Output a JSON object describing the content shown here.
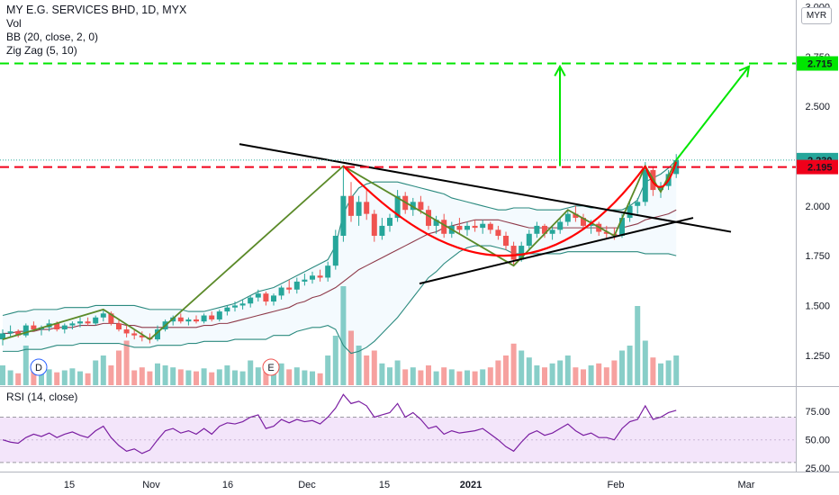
{
  "legend": {
    "title": "MY E.G. SERVICES BHD, 1D, MYX",
    "vol": "Vol",
    "bb": "BB (20, close, 2, 0)",
    "zigzag": "Zig Zag (5, 10)",
    "rsi": "RSI (14, close)"
  },
  "currency": "MYR",
  "colors": {
    "up": "#26a69a",
    "down": "#ef5350",
    "bb_upper": "#2b8a7f",
    "bb_basis": "#8e3a4a",
    "zigzag": "#5b8a29",
    "cup": "#ff0000",
    "target": "#00e600",
    "trend": "#000000",
    "rsi_line": "#7b1fa2",
    "rsi_bg": "#f3e5fa"
  },
  "chart_data": {
    "type": "candlestick",
    "price_axis": {
      "range": [
        1.1,
        3.02
      ],
      "ticks": [
        "3.000",
        "2.750",
        "2.500",
        "2.250",
        "2.000",
        "1.750",
        "1.500",
        "1.250"
      ]
    },
    "time_axis": {
      "ticks": [
        "15",
        "Nov",
        "16",
        "Dec",
        "15",
        "2021",
        "Feb",
        "Mar"
      ]
    },
    "price_labels": [
      {
        "text": "2.715",
        "value": 2.715,
        "color": "#00e600",
        "text_color": "#131722"
      },
      {
        "text": "2.230",
        "value": 2.23,
        "color": "#26a69a",
        "text_color": "#ffffff"
      },
      {
        "text": "2.195",
        "value": 2.195,
        "color": "#f0001a",
        "text_color": "#ffffff"
      }
    ],
    "hidden_tick": "2.750",
    "candles": [
      [
        1.33,
        1.38,
        1.3,
        1.36
      ],
      [
        1.36,
        1.4,
        1.34,
        1.37
      ],
      [
        1.37,
        1.38,
        1.34,
        1.35
      ],
      [
        1.35,
        1.41,
        1.34,
        1.4
      ],
      [
        1.4,
        1.42,
        1.37,
        1.38
      ],
      [
        1.38,
        1.4,
        1.35,
        1.39
      ],
      [
        1.39,
        1.43,
        1.37,
        1.41
      ],
      [
        1.41,
        1.42,
        1.37,
        1.38
      ],
      [
        1.38,
        1.41,
        1.36,
        1.4
      ],
      [
        1.4,
        1.42,
        1.38,
        1.41
      ],
      [
        1.41,
        1.44,
        1.39,
        1.42
      ],
      [
        1.42,
        1.44,
        1.4,
        1.41
      ],
      [
        1.41,
        1.45,
        1.4,
        1.44
      ],
      [
        1.44,
        1.48,
        1.42,
        1.46
      ],
      [
        1.46,
        1.47,
        1.4,
        1.41
      ],
      [
        1.41,
        1.43,
        1.37,
        1.38
      ],
      [
        1.38,
        1.4,
        1.34,
        1.36
      ],
      [
        1.36,
        1.38,
        1.33,
        1.35
      ],
      [
        1.35,
        1.37,
        1.32,
        1.34
      ],
      [
        1.34,
        1.36,
        1.31,
        1.33
      ],
      [
        1.33,
        1.4,
        1.32,
        1.38
      ],
      [
        1.38,
        1.43,
        1.37,
        1.42
      ],
      [
        1.42,
        1.45,
        1.4,
        1.44
      ],
      [
        1.44,
        1.46,
        1.41,
        1.42
      ],
      [
        1.42,
        1.44,
        1.4,
        1.43
      ],
      [
        1.43,
        1.45,
        1.41,
        1.42
      ],
      [
        1.42,
        1.46,
        1.41,
        1.45
      ],
      [
        1.45,
        1.47,
        1.42,
        1.43
      ],
      [
        1.43,
        1.48,
        1.42,
        1.47
      ],
      [
        1.47,
        1.5,
        1.45,
        1.49
      ],
      [
        1.49,
        1.52,
        1.47,
        1.5
      ],
      [
        1.5,
        1.53,
        1.48,
        1.51
      ],
      [
        1.51,
        1.55,
        1.49,
        1.54
      ],
      [
        1.54,
        1.58,
        1.52,
        1.56
      ],
      [
        1.56,
        1.57,
        1.5,
        1.52
      ],
      [
        1.52,
        1.56,
        1.5,
        1.55
      ],
      [
        1.55,
        1.6,
        1.53,
        1.59
      ],
      [
        1.59,
        1.63,
        1.56,
        1.58
      ],
      [
        1.58,
        1.64,
        1.56,
        1.62
      ],
      [
        1.62,
        1.66,
        1.6,
        1.63
      ],
      [
        1.63,
        1.67,
        1.61,
        1.65
      ],
      [
        1.65,
        1.68,
        1.62,
        1.64
      ],
      [
        1.64,
        1.72,
        1.62,
        1.7
      ],
      [
        1.7,
        1.88,
        1.68,
        1.85
      ],
      [
        1.85,
        2.2,
        1.82,
        2.05
      ],
      [
        2.05,
        2.12,
        1.92,
        1.95
      ],
      [
        1.95,
        2.05,
        1.9,
        2.02
      ],
      [
        2.02,
        2.08,
        1.93,
        1.96
      ],
      [
        1.96,
        1.98,
        1.82,
        1.85
      ],
      [
        1.85,
        1.94,
        1.83,
        1.9
      ],
      [
        1.9,
        1.96,
        1.87,
        1.94
      ],
      [
        1.94,
        2.08,
        1.92,
        2.05
      ],
      [
        2.05,
        2.07,
        1.96,
        1.98
      ],
      [
        1.98,
        2.04,
        1.95,
        2.02
      ],
      [
        2.02,
        2.05,
        1.96,
        1.98
      ],
      [
        1.98,
        2.0,
        1.88,
        1.9
      ],
      [
        1.9,
        1.95,
        1.86,
        1.93
      ],
      [
        1.93,
        1.96,
        1.84,
        1.86
      ],
      [
        1.86,
        1.92,
        1.84,
        1.9
      ],
      [
        1.9,
        1.94,
        1.86,
        1.88
      ],
      [
        1.88,
        1.92,
        1.85,
        1.9
      ],
      [
        1.9,
        1.93,
        1.87,
        1.89
      ],
      [
        1.89,
        1.93,
        1.86,
        1.91
      ],
      [
        1.91,
        1.92,
        1.86,
        1.88
      ],
      [
        1.88,
        1.9,
        1.83,
        1.85
      ],
      [
        1.85,
        1.87,
        1.78,
        1.8
      ],
      [
        1.8,
        1.82,
        1.7,
        1.73
      ],
      [
        1.73,
        1.82,
        1.72,
        1.8
      ],
      [
        1.8,
        1.88,
        1.78,
        1.86
      ],
      [
        1.86,
        1.92,
        1.84,
        1.9
      ],
      [
        1.9,
        1.91,
        1.84,
        1.86
      ],
      [
        1.86,
        1.9,
        1.83,
        1.88
      ],
      [
        1.88,
        1.94,
        1.86,
        1.92
      ],
      [
        1.92,
        1.98,
        1.9,
        1.96
      ],
      [
        1.96,
        2.0,
        1.92,
        1.94
      ],
      [
        1.94,
        1.96,
        1.88,
        1.9
      ],
      [
        1.9,
        1.93,
        1.86,
        1.91
      ],
      [
        1.91,
        1.92,
        1.85,
        1.87
      ],
      [
        1.87,
        1.9,
        1.84,
        1.86
      ],
      [
        1.86,
        1.89,
        1.83,
        1.85
      ],
      [
        1.85,
        1.96,
        1.84,
        1.94
      ],
      [
        1.94,
        2.02,
        1.92,
        2.0
      ],
      [
        2.0,
        2.04,
        1.96,
        2.02
      ],
      [
        2.02,
        2.22,
        2.0,
        2.18
      ],
      [
        2.18,
        2.2,
        2.05,
        2.08
      ],
      [
        2.08,
        2.12,
        2.04,
        2.1
      ],
      [
        2.1,
        2.18,
        2.08,
        2.16
      ],
      [
        2.16,
        2.26,
        2.14,
        2.23
      ]
    ],
    "volume": [
      0.2,
      0.15,
      0.12,
      0.4,
      0.18,
      0.14,
      0.16,
      0.13,
      0.15,
      0.17,
      0.14,
      0.12,
      0.25,
      0.3,
      0.2,
      0.35,
      0.45,
      0.15,
      0.18,
      0.14,
      0.22,
      0.2,
      0.18,
      0.16,
      0.15,
      0.14,
      0.17,
      0.13,
      0.16,
      0.2,
      0.15,
      0.14,
      0.25,
      0.18,
      0.14,
      0.2,
      0.22,
      0.16,
      0.18,
      0.15,
      0.14,
      0.12,
      0.3,
      0.5,
      1.0,
      0.55,
      0.4,
      0.3,
      0.35,
      0.22,
      0.18,
      0.25,
      0.16,
      0.18,
      0.15,
      0.2,
      0.14,
      0.18,
      0.16,
      0.14,
      0.15,
      0.14,
      0.16,
      0.18,
      0.25,
      0.3,
      0.42,
      0.35,
      0.28,
      0.2,
      0.18,
      0.22,
      0.25,
      0.3,
      0.18,
      0.16,
      0.2,
      0.22,
      0.18,
      0.25,
      0.35,
      0.4,
      0.8,
      0.45,
      0.28,
      0.22,
      0.25,
      0.3
    ],
    "rsi": {
      "range": [
        22,
        95
      ],
      "ticks": [
        "75.00",
        "50.00",
        "25.00"
      ],
      "upper": 70,
      "lower": 30,
      "values": [
        50,
        48,
        47,
        52,
        55,
        53,
        56,
        52,
        55,
        57,
        54,
        52,
        58,
        62,
        52,
        45,
        40,
        42,
        38,
        41,
        50,
        58,
        60,
        56,
        58,
        55,
        60,
        55,
        62,
        65,
        64,
        66,
        70,
        72,
        60,
        62,
        68,
        65,
        68,
        66,
        67,
        64,
        70,
        78,
        90,
        82,
        84,
        80,
        70,
        72,
        74,
        82,
        70,
        74,
        68,
        60,
        62,
        55,
        58,
        56,
        57,
        58,
        60,
        55,
        50,
        44,
        40,
        48,
        55,
        58,
        54,
        56,
        60,
        64,
        58,
        54,
        56,
        52,
        52,
        50,
        60,
        66,
        68,
        80,
        68,
        70,
        74,
        76
      ]
    },
    "bb_upper": [
      1.45,
      1.46,
      1.47,
      1.47,
      1.48,
      1.48,
      1.48,
      1.48,
      1.49,
      1.49,
      1.49,
      1.49,
      1.5,
      1.5,
      1.5,
      1.5,
      1.5,
      1.5,
      1.49,
      1.48,
      1.48,
      1.48,
      1.48,
      1.48,
      1.47,
      1.47,
      1.47,
      1.48,
      1.49,
      1.5,
      1.51,
      1.53,
      1.55,
      1.57,
      1.58,
      1.59,
      1.61,
      1.63,
      1.65,
      1.67,
      1.69,
      1.71,
      1.73,
      1.8,
      1.96,
      2.04,
      2.09,
      2.11,
      2.12,
      2.12,
      2.12,
      2.12,
      2.11,
      2.1,
      2.09,
      2.08,
      2.07,
      2.06,
      2.04,
      2.03,
      2.02,
      2.01,
      2.0,
      1.99,
      1.98,
      1.98,
      1.99,
      1.99,
      1.99,
      1.98,
      1.98,
      1.98,
      1.98,
      1.99,
      2.0,
      2.0,
      1.99,
      1.99,
      1.98,
      1.98,
      1.98,
      2.0,
      2.03,
      2.12,
      2.14,
      2.16,
      2.19,
      2.23
    ],
    "bb_basis": [
      1.36,
      1.36,
      1.37,
      1.37,
      1.37,
      1.38,
      1.38,
      1.39,
      1.39,
      1.39,
      1.4,
      1.4,
      1.4,
      1.41,
      1.41,
      1.41,
      1.4,
      1.4,
      1.39,
      1.39,
      1.39,
      1.39,
      1.39,
      1.39,
      1.39,
      1.39,
      1.4,
      1.4,
      1.41,
      1.41,
      1.42,
      1.43,
      1.44,
      1.45,
      1.46,
      1.47,
      1.48,
      1.49,
      1.51,
      1.52,
      1.54,
      1.55,
      1.57,
      1.59,
      1.62,
      1.65,
      1.68,
      1.7,
      1.72,
      1.74,
      1.76,
      1.78,
      1.8,
      1.82,
      1.84,
      1.86,
      1.87,
      1.89,
      1.9,
      1.91,
      1.92,
      1.93,
      1.93,
      1.93,
      1.93,
      1.92,
      1.91,
      1.9,
      1.89,
      1.89,
      1.89,
      1.89,
      1.89,
      1.89,
      1.89,
      1.89,
      1.89,
      1.89,
      1.89,
      1.89,
      1.89,
      1.9,
      1.91,
      1.93,
      1.94,
      1.95,
      1.96,
      1.98
    ],
    "bb_lower": [
      1.27,
      1.27,
      1.27,
      1.28,
      1.28,
      1.28,
      1.29,
      1.3,
      1.3,
      1.3,
      1.31,
      1.31,
      1.31,
      1.31,
      1.31,
      1.31,
      1.3,
      1.29,
      1.29,
      1.29,
      1.3,
      1.3,
      1.3,
      1.3,
      1.31,
      1.31,
      1.32,
      1.32,
      1.32,
      1.32,
      1.33,
      1.33,
      1.33,
      1.33,
      1.33,
      1.35,
      1.35,
      1.35,
      1.37,
      1.38,
      1.39,
      1.39,
      1.4,
      1.38,
      1.3,
      1.26,
      1.27,
      1.29,
      1.32,
      1.36,
      1.4,
      1.44,
      1.49,
      1.54,
      1.59,
      1.64,
      1.67,
      1.71,
      1.74,
      1.77,
      1.79,
      1.8,
      1.8,
      1.8,
      1.79,
      1.78,
      1.76,
      1.76,
      1.76,
      1.76,
      1.76,
      1.76,
      1.76,
      1.77,
      1.77,
      1.77,
      1.77,
      1.77,
      1.77,
      1.77,
      1.77,
      1.77,
      1.77,
      1.76,
      1.76,
      1.76,
      1.76,
      1.75
    ],
    "zigzag": [
      [
        0,
        1.33
      ],
      [
        13,
        1.48
      ],
      [
        19,
        1.33
      ],
      [
        44,
        2.2
      ],
      [
        66,
        1.7
      ],
      [
        73,
        1.98
      ],
      [
        79,
        1.85
      ],
      [
        83,
        2.2
      ],
      [
        85,
        2.07
      ],
      [
        87,
        2.23
      ]
    ]
  }
}
